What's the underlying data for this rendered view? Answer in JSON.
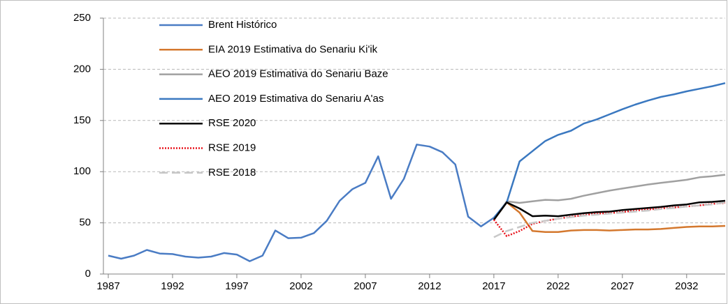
{
  "chart_data": {
    "type": "line",
    "x": [
      1987,
      1988,
      1989,
      1990,
      1991,
      1992,
      1993,
      1994,
      1995,
      1996,
      1997,
      1998,
      1999,
      2000,
      2001,
      2002,
      2003,
      2004,
      2005,
      2006,
      2007,
      2008,
      2009,
      2010,
      2011,
      2012,
      2013,
      2014,
      2015,
      2016,
      2017,
      2018,
      2019,
      2020,
      2021,
      2022,
      2023,
      2024,
      2025,
      2026,
      2027,
      2028,
      2029,
      2030,
      2031,
      2032,
      2033,
      2034,
      2035
    ],
    "xlim": [
      1987,
      2035
    ],
    "xticks": [
      1987,
      1992,
      1997,
      2002,
      2007,
      2012,
      2017,
      2022,
      2027,
      2032
    ],
    "ylim": [
      0,
      250
    ],
    "yticks": [
      0,
      50,
      100,
      150,
      200,
      250
    ],
    "grid": true,
    "legend": "top-left",
    "series": [
      {
        "name": "Brent Histórico",
        "color": "#4a7cc4",
        "style": "solid",
        "values": [
          18,
          15,
          18,
          23.5,
          20,
          19.5,
          17,
          16,
          17,
          20.5,
          19,
          12.5,
          18,
          42.5,
          35,
          35.5,
          40,
          52,
          71.5,
          83,
          89,
          115,
          73.5,
          93,
          126.5,
          124.5,
          119,
          107,
          56,
          46.5,
          55,
          null,
          null,
          null,
          null,
          null,
          null,
          null,
          null,
          null,
          null,
          null,
          null,
          null,
          null,
          null,
          null,
          null,
          null
        ]
      },
      {
        "name": "EIA 2019 Estimativa do Senariu Ki'ik",
        "color": "#d4782e",
        "style": "solid",
        "values": [
          null,
          null,
          null,
          null,
          null,
          null,
          null,
          null,
          null,
          null,
          null,
          null,
          null,
          null,
          null,
          null,
          null,
          null,
          null,
          null,
          null,
          null,
          null,
          null,
          null,
          null,
          null,
          null,
          null,
          null,
          53,
          70,
          60,
          42,
          41,
          41,
          42.5,
          43,
          43,
          42.5,
          43,
          43.5,
          43.5,
          44,
          45,
          46,
          46.5,
          46.5,
          47
        ]
      },
      {
        "name": "AEO 2019 Estimativa do Senariu Baze",
        "color": "#a0a0a0",
        "style": "solid",
        "values": [
          null,
          null,
          null,
          null,
          null,
          null,
          null,
          null,
          null,
          null,
          null,
          null,
          null,
          null,
          null,
          null,
          null,
          null,
          null,
          null,
          null,
          null,
          null,
          null,
          null,
          null,
          null,
          null,
          null,
          null,
          53,
          71,
          69.5,
          71,
          72.5,
          72,
          73.5,
          76.5,
          79,
          81.5,
          83.5,
          85.5,
          87.5,
          89,
          90.5,
          92,
          94.5,
          95.5,
          97
        ]
      },
      {
        "name": "AEO 2019 Estimativa do Senariu A'as",
        "color": "#3a78c0",
        "style": "solid",
        "values": [
          null,
          null,
          null,
          null,
          null,
          null,
          null,
          null,
          null,
          null,
          null,
          null,
          null,
          null,
          null,
          null,
          null,
          null,
          null,
          null,
          null,
          null,
          null,
          null,
          null,
          null,
          null,
          null,
          null,
          null,
          55,
          70,
          110,
          120,
          130,
          136,
          140,
          147,
          151,
          156,
          161,
          165.5,
          169.5,
          173,
          175.5,
          178.5,
          181,
          183.5,
          186.5
        ]
      },
      {
        "name": "RSE 2020",
        "color": "#000000",
        "style": "solid",
        "values": [
          null,
          null,
          null,
          null,
          null,
          null,
          null,
          null,
          null,
          null,
          null,
          null,
          null,
          null,
          null,
          null,
          null,
          null,
          null,
          null,
          null,
          null,
          null,
          null,
          null,
          null,
          null,
          null,
          null,
          null,
          53,
          70,
          64,
          56.5,
          57,
          56.5,
          58,
          59.5,
          60.5,
          61,
          62.5,
          63.5,
          64.5,
          65.5,
          67,
          68,
          70,
          70.5,
          71.5
        ]
      },
      {
        "name": "RSE 2019",
        "color": "#e8141c",
        "style": "dotted",
        "values": [
          null,
          null,
          null,
          null,
          null,
          null,
          null,
          null,
          null,
          null,
          null,
          null,
          null,
          null,
          null,
          null,
          null,
          null,
          null,
          null,
          null,
          null,
          null,
          null,
          null,
          null,
          null,
          null,
          null,
          null,
          53,
          37,
          42,
          49,
          52,
          54,
          56,
          57.5,
          59,
          59.5,
          60.5,
          62,
          63,
          64,
          65,
          66,
          67,
          68.5,
          69.5
        ]
      },
      {
        "name": "RSE 2018",
        "color": "#c8c8c8",
        "style": "dashed",
        "values": [
          null,
          null,
          null,
          null,
          null,
          null,
          null,
          null,
          null,
          null,
          null,
          null,
          null,
          null,
          null,
          null,
          null,
          null,
          null,
          null,
          null,
          null,
          null,
          null,
          null,
          null,
          null,
          null,
          null,
          null,
          36,
          42,
          46,
          50,
          52,
          54,
          55.5,
          57,
          58,
          59,
          60,
          61,
          62,
          63.5,
          64.5,
          66,
          67,
          68,
          70
        ]
      }
    ]
  }
}
